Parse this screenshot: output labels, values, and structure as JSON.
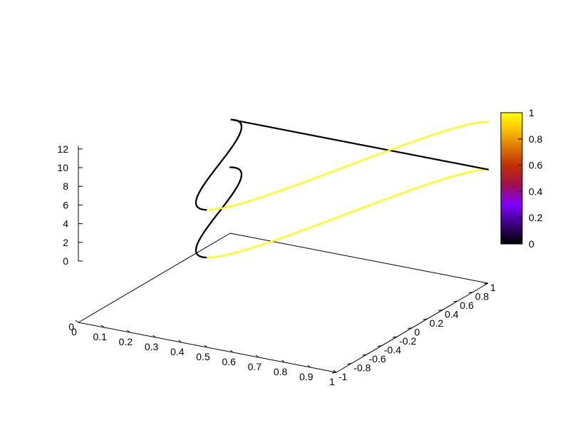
{
  "chart_data": {
    "type": "line",
    "mode": "3d-parametric",
    "title": "",
    "xlabel": "",
    "ylabel": "",
    "zlabel": "",
    "xlim": [
      0,
      1
    ],
    "ylim": [
      -1,
      1
    ],
    "zlim": [
      0,
      12
    ],
    "grid": false,
    "legend": "none",
    "x_ticks": [
      "0",
      "0.1",
      "0.2",
      "0.3",
      "0.4",
      "0.5",
      "0.6",
      "0.7",
      "0.8",
      "0.9",
      "1"
    ],
    "y_ticks": [
      "-1",
      "-0.8",
      "-0.6",
      "-0.4",
      "-0.2",
      "0",
      "0.2",
      "0.4",
      "0.6",
      "0.8",
      "1"
    ],
    "z_ticks": [
      "0",
      "2",
      "4",
      "6",
      "8",
      "10",
      "12"
    ],
    "series": [
      {
        "function": "x = t / (2π), y = cos(t), z = t, color = z-based palette",
        "t_range": [
          0,
          12.566
        ],
        "samples": 400
      }
    ],
    "colorbar": {
      "range": [
        0,
        1
      ],
      "ticks": [
        "0",
        "0.2",
        "0.4",
        "0.6",
        "0.8",
        "1"
      ],
      "palette": [
        "#000000",
        "#4400cc",
        "#9900ff",
        "#bb2233",
        "#cc3300",
        "#ee7700",
        "#ffcc00",
        "#ffff00"
      ]
    }
  }
}
